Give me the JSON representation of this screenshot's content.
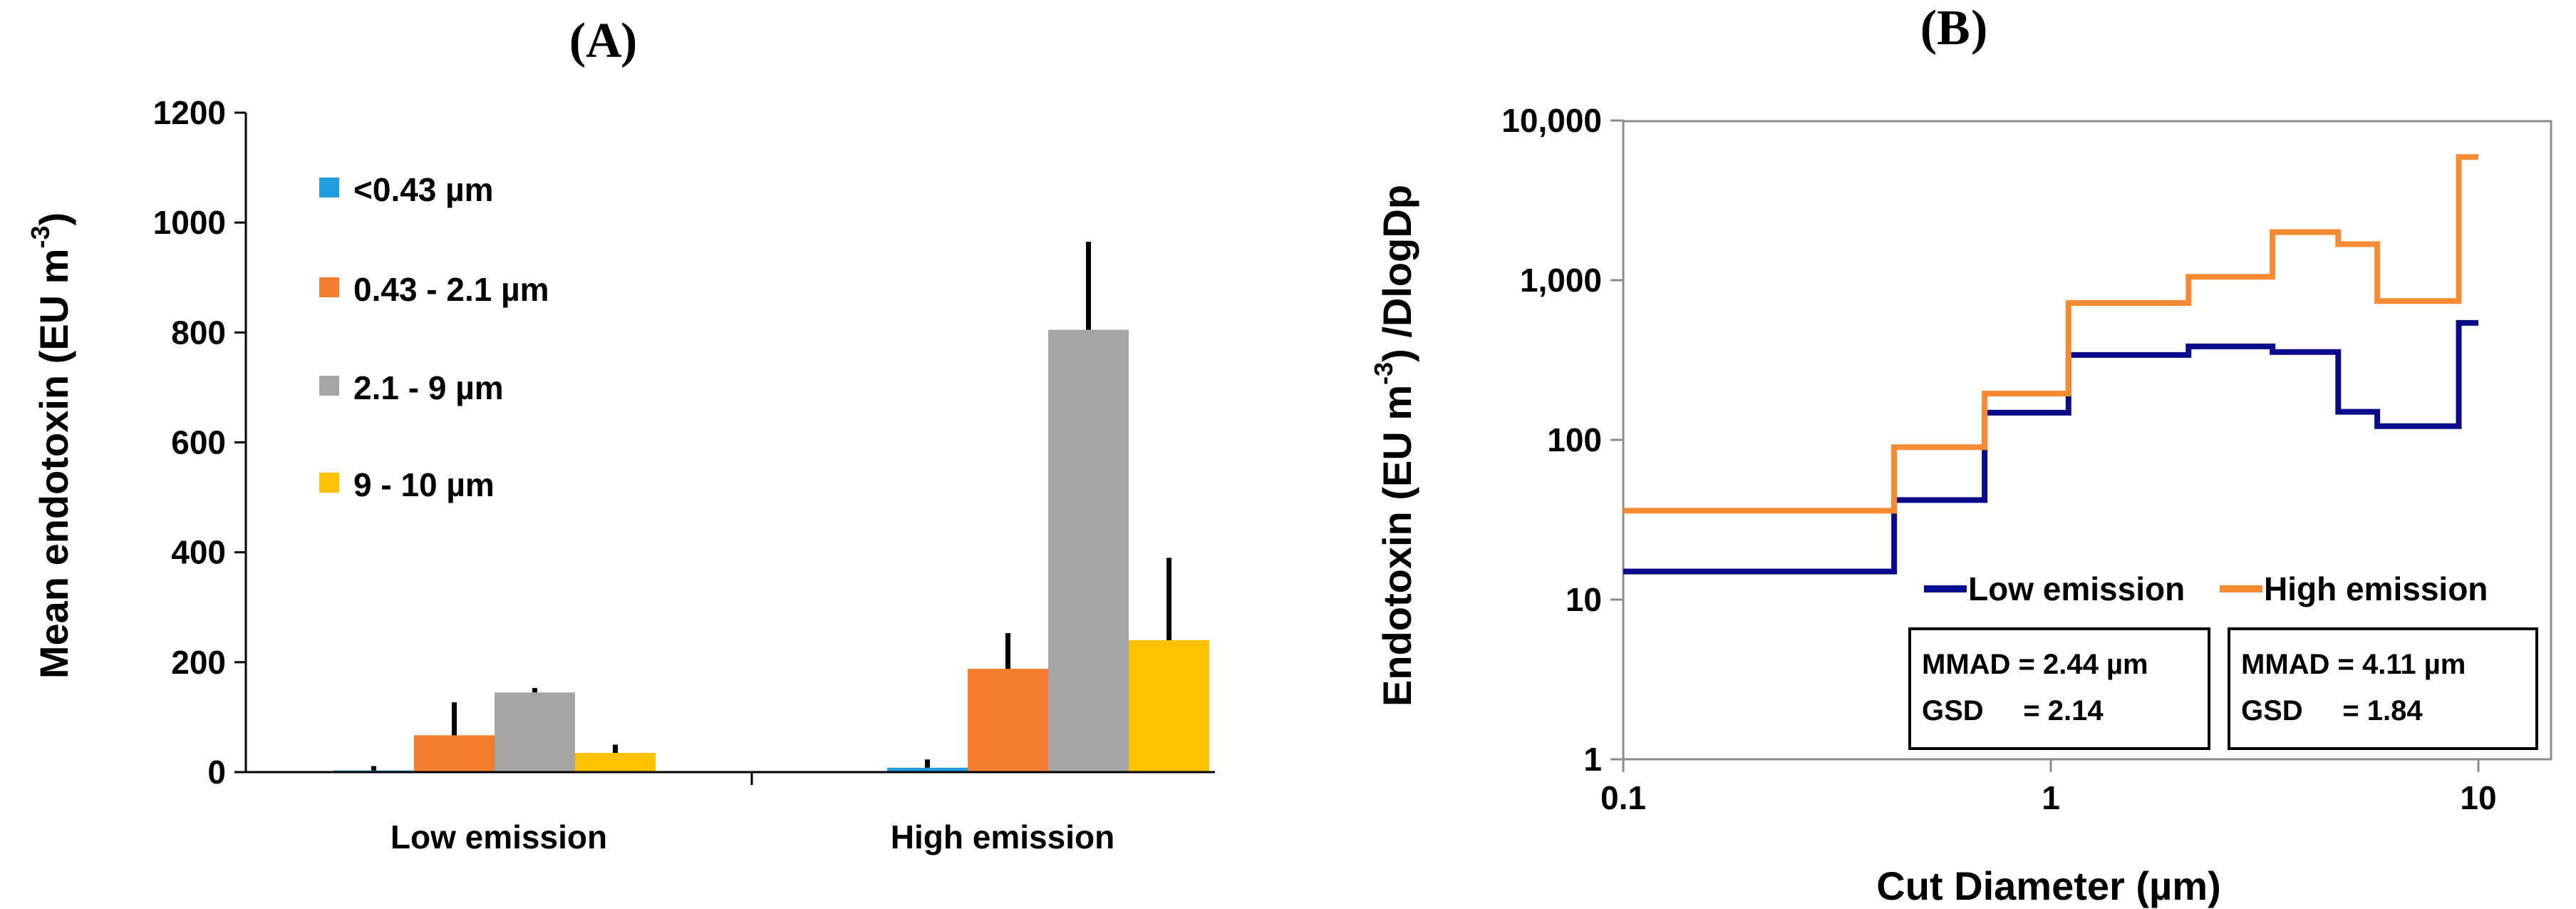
{
  "figure": {
    "panel_a_label": "A",
    "panel_b_label": "B"
  },
  "chart_data": [
    {
      "type": "bar",
      "title": "",
      "xlabel": "",
      "ylabel": "Mean endotoxin (EU m-3)",
      "ylabel_parts": {
        "main": "Mean endotoxin (EU m",
        "sup": "-3",
        "end": ")"
      },
      "categories": [
        "Low emission",
        "High emission"
      ],
      "ylim": [
        0,
        1200
      ],
      "yticks": [
        0,
        200,
        400,
        600,
        800,
        1000,
        1200
      ],
      "legend_position": "top-left",
      "series": [
        {
          "name": "<0.43 µm",
          "color": "#1f9fe0",
          "values": [
            3,
            8
          ],
          "error": [
            8,
            15
          ]
        },
        {
          "name": "0.43 - 2.1 µm",
          "color": "#f47e2e",
          "values": [
            67,
            188
          ],
          "error": [
            60,
            65
          ]
        },
        {
          "name": "2.1 - 9 µm",
          "color": "#a5a5a5",
          "values": [
            145,
            805
          ],
          "error": [
            8,
            160
          ]
        },
        {
          "name": "9  - 10 µm",
          "color": "#ffc000",
          "values": [
            35,
            240
          ],
          "error": [
            15,
            150
          ]
        }
      ]
    },
    {
      "type": "line",
      "title": "",
      "xlabel": "Cut Diameter (µm)",
      "ylabel": "Endotoxin (EU m-3) /DlogDp",
      "ylabel_parts": {
        "main": "Endotoxin (EU m",
        "sup": "-3",
        "end": ") /DlogDp"
      },
      "xscale": "log",
      "yscale": "log",
      "xlim": [
        0.1,
        15
      ],
      "ylim": [
        1,
        10000
      ],
      "xticks": [
        0.1,
        1,
        10
      ],
      "xtick_labels": [
        "0.1",
        "1",
        "10"
      ],
      "yticks": [
        1,
        10,
        100,
        1000,
        10000
      ],
      "ytick_labels": [
        "1",
        "10",
        "100",
        "1,000",
        "10,000"
      ],
      "legend_position": "bottom-right",
      "series": [
        {
          "name": "Low emission",
          "color": "#0a0a8c",
          "x": [
            0.1,
            0.43,
            0.43,
            0.7,
            0.7,
            1.1,
            1.1,
            2.1,
            2.1,
            3.3,
            3.3,
            4.7,
            4.7,
            5.8,
            5.8,
            9.0,
            9.0,
            10
          ],
          "y": [
            15,
            15,
            42,
            42,
            148,
            148,
            340,
            340,
            385,
            385,
            355,
            355,
            150,
            150,
            122,
            122,
            540,
            540
          ]
        },
        {
          "name": "High emission",
          "color": "#f58a32",
          "x": [
            0.1,
            0.43,
            0.43,
            0.7,
            0.7,
            1.1,
            1.1,
            2.1,
            2.1,
            3.3,
            3.3,
            4.7,
            4.7,
            5.8,
            5.8,
            9.0,
            9.0,
            10
          ],
          "y": [
            36,
            36,
            90,
            90,
            195,
            195,
            720,
            720,
            1050,
            1050,
            2000,
            2000,
            1680,
            1680,
            740,
            740,
            5900,
            5900
          ]
        }
      ],
      "stat_boxes": [
        {
          "line1": "MMAD = 2.44 µm",
          "line2": "GSD     = 2.14"
        },
        {
          "line1": "MMAD = 4.11 µm",
          "line2": "GSD     = 1.84"
        }
      ]
    }
  ]
}
